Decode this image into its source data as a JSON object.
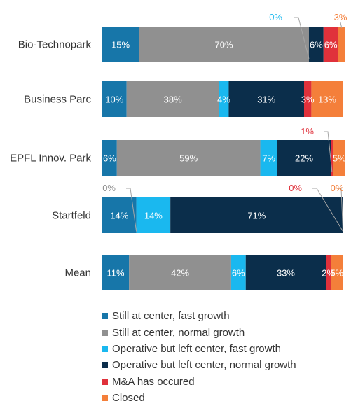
{
  "chart_data": {
    "type": "bar",
    "orientation": "horizontal",
    "stacked": "percent",
    "title": "",
    "xlabel": "",
    "ylabel": "",
    "xlim": [
      0,
      100
    ],
    "categories": [
      "Bio-Technopark",
      "Business Parc",
      "EPFL Innov. Park",
      "Startfeld",
      "Mean"
    ],
    "series": [
      {
        "name": "Still at center, fast growth",
        "color": "#1776a9",
        "values": [
          15,
          10,
          6,
          14,
          11
        ]
      },
      {
        "name": "Still at center, normal growth",
        "color": "#909090",
        "values": [
          70,
          38,
          59,
          0,
          42
        ]
      },
      {
        "name": "Operative but left center, fast growth",
        "color": "#1ab8ef",
        "values": [
          0,
          4,
          7,
          14,
          6
        ]
      },
      {
        "name": "Operative but left center, normal growth",
        "color": "#0b2e4b",
        "values": [
          6,
          31,
          22,
          71,
          33
        ]
      },
      {
        "name": "M&A has occured",
        "color": "#e0313b",
        "values": [
          6,
          3,
          1,
          0,
          2
        ]
      },
      {
        "name": "Closed",
        "color": "#f47f3a",
        "values": [
          3,
          13,
          5,
          0,
          5
        ]
      }
    ],
    "data_labels": [
      [
        "15%",
        "70%",
        "0%",
        "6%",
        "6%",
        "3%"
      ],
      [
        "10%",
        "38%",
        "4%",
        "31%",
        "3%",
        "13%"
      ],
      [
        "6%",
        "59%",
        "7%",
        "22%",
        "1%",
        "5%"
      ],
      [
        "14%",
        "0%",
        "14%",
        "71%",
        "0%",
        "0%"
      ],
      [
        "11%",
        "42%",
        "6%",
        "33%",
        "2%",
        "5%"
      ]
    ],
    "callout_labels": [
      {
        "category": 0,
        "series": 2
      },
      {
        "category": 0,
        "series": 5
      },
      {
        "category": 2,
        "series": 4
      },
      {
        "category": 3,
        "series": 1
      },
      {
        "category": 3,
        "series": 4
      },
      {
        "category": 3,
        "series": 5
      }
    ],
    "legend": "bottom-left",
    "grid": false
  }
}
